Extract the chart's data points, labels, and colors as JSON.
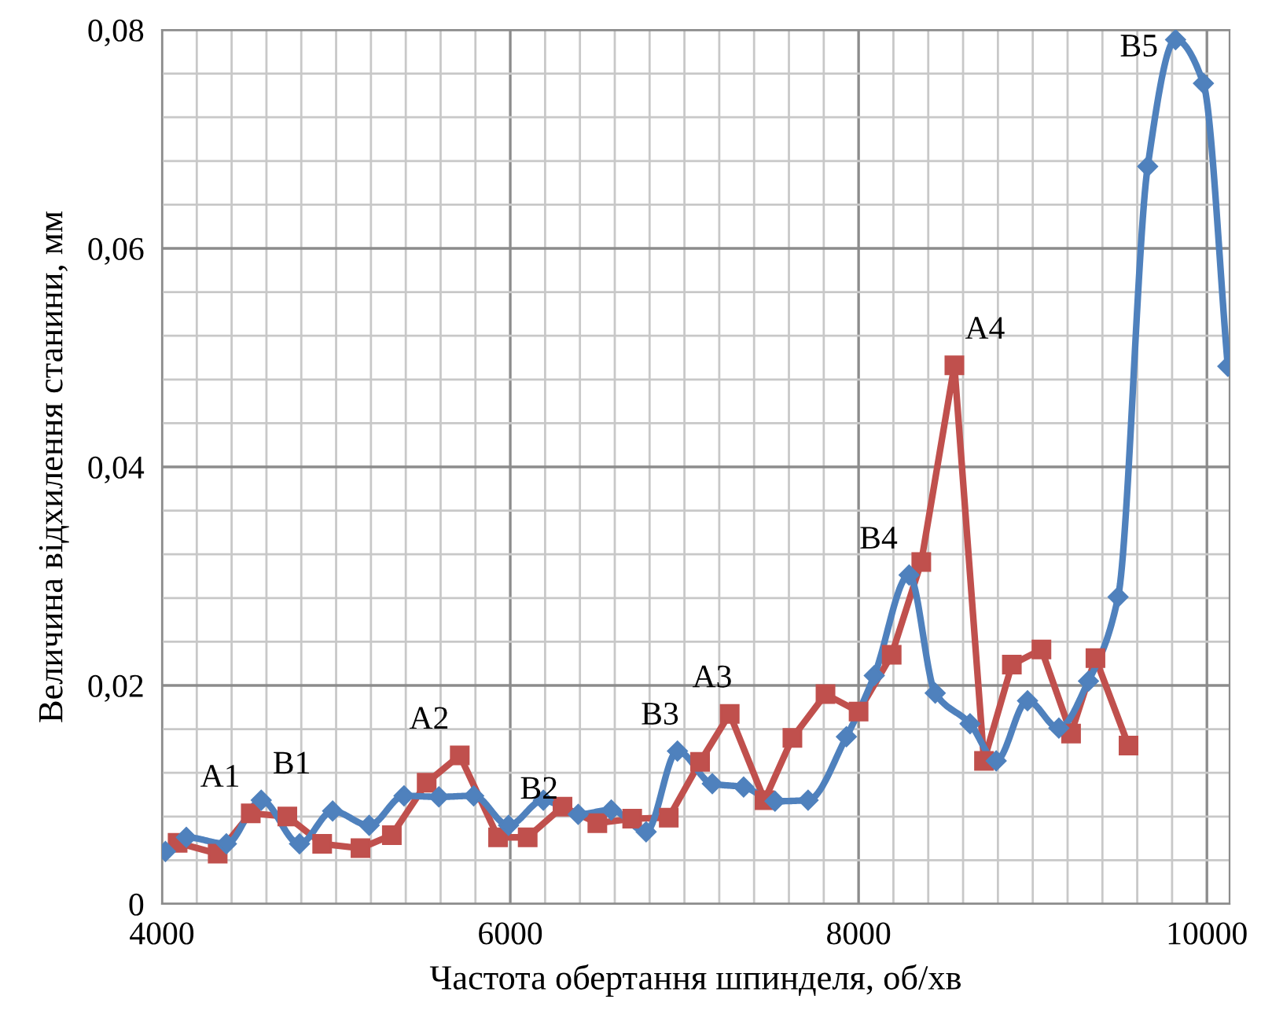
{
  "chart_data": {
    "type": "line",
    "xlabel": "Частота обертання шпинделя, об/хв",
    "ylabel": "Величина відхилення станини, мм",
    "xlim": [
      4000,
      10130
    ],
    "xticks": [
      4000,
      {
        "value": 4200,
        "label": null
      },
      {
        "value": 4400,
        "label": null
      },
      {
        "value": 4600,
        "label": null
      },
      {
        "value": 4800,
        "label": null
      },
      {
        "value": 5000,
        "label": null
      },
      {
        "value": 5200,
        "label": null
      },
      {
        "value": 5400,
        "label": null
      },
      {
        "value": 5600,
        "label": null
      },
      {
        "value": 5800,
        "label": null
      },
      6000,
      {
        "value": 6200,
        "label": null
      },
      {
        "value": 6400,
        "label": null
      },
      {
        "value": 6600,
        "label": null
      },
      {
        "value": 6800,
        "label": null
      },
      {
        "value": 7000,
        "label": null
      },
      {
        "value": 7200,
        "label": null
      },
      {
        "value": 7400,
        "label": null
      },
      {
        "value": 7600,
        "label": null
      },
      {
        "value": 7800,
        "label": null
      },
      8000,
      {
        "value": 8200,
        "label": null
      },
      {
        "value": 8400,
        "label": null
      },
      {
        "value": 8600,
        "label": null
      },
      {
        "value": 8800,
        "label": null
      },
      {
        "value": 9000,
        "label": null
      },
      {
        "value": 9200,
        "label": null
      },
      {
        "value": 9400,
        "label": null
      },
      {
        "value": 9600,
        "label": null
      },
      {
        "value": 9800,
        "label": null
      },
      10000
    ],
    "ylim": [
      0,
      0.08
    ],
    "yticks": [
      {
        "value": 0,
        "label": "0"
      },
      {
        "value": 0.004,
        "label": null
      },
      {
        "value": 0.008,
        "label": null
      },
      {
        "value": 0.012,
        "label": null
      },
      {
        "value": 0.016,
        "label": null
      },
      {
        "value": 0.02,
        "label": "0,02"
      },
      {
        "value": 0.024,
        "label": null
      },
      {
        "value": 0.028,
        "label": null
      },
      {
        "value": 0.032,
        "label": null
      },
      {
        "value": 0.036,
        "label": null
      },
      {
        "value": 0.04,
        "label": "0,04"
      },
      {
        "value": 0.044,
        "label": null
      },
      {
        "value": 0.048,
        "label": null
      },
      {
        "value": 0.052,
        "label": null
      },
      {
        "value": 0.056,
        "label": null
      },
      {
        "value": 0.06,
        "label": "0,06"
      },
      {
        "value": 0.064,
        "label": null
      },
      {
        "value": 0.068,
        "label": null
      },
      {
        "value": 0.072,
        "label": null
      },
      {
        "value": 0.076,
        "label": null
      },
      {
        "value": 0.08,
        "label": "0,08"
      }
    ],
    "grid": true,
    "legend": false,
    "series": [
      {
        "color": "#c0504d",
        "marker": "square",
        "line_style": "solid",
        "x": [
          4090,
          4320,
          4510,
          4720,
          4920,
          5140,
          5320,
          5520,
          5710,
          5930,
          6100,
          6300,
          6500,
          6700,
          6910,
          7090,
          7260,
          7460,
          7620,
          7810,
          8000,
          8190,
          8360,
          8550,
          8720,
          8880,
          9050,
          9220,
          9360,
          9550
        ],
        "values": [
          0.0056,
          0.0046,
          0.0083,
          0.008,
          0.0055,
          0.0051,
          0.0063,
          0.0111,
          0.0136,
          0.0061,
          0.0061,
          0.0089,
          0.0074,
          0.0078,
          0.0079,
          0.013,
          0.0174,
          0.0095,
          0.0152,
          0.0192,
          0.0176,
          0.0228,
          0.0313,
          0.0493,
          0.0131,
          0.0219,
          0.0233,
          0.0156,
          0.0225,
          0.0145
        ]
      },
      {
        "color": "#4f81bd",
        "marker": "diamond",
        "line_style": "solid",
        "x": [
          4020,
          4140,
          4370,
          4570,
          4790,
          4980,
          5190,
          5390,
          5590,
          5790,
          5990,
          6190,
          6390,
          6580,
          6780,
          6960,
          7160,
          7340,
          7520,
          7710,
          7930,
          8090,
          8290,
          8440,
          8640,
          8790,
          8970,
          9150,
          9320,
          9490,
          9660,
          9820,
          9980,
          10120
        ],
        "values": [
          0.0048,
          0.0061,
          0.0055,
          0.0095,
          0.0055,
          0.0085,
          0.0072,
          0.0099,
          0.0098,
          0.0099,
          0.0072,
          0.0095,
          0.0082,
          0.0086,
          0.0066,
          0.014,
          0.011,
          0.0107,
          0.0094,
          0.0095,
          0.0153,
          0.0209,
          0.0301,
          0.0193,
          0.0165,
          0.0131,
          0.0186,
          0.0161,
          0.0204,
          0.0281,
          0.0675,
          0.0791,
          0.0751,
          0.0492
        ]
      }
    ],
    "annotations": [
      {
        "text": "A1",
        "x": 4510,
        "y": 0.0083
      },
      {
        "text": "B1",
        "x": 4570,
        "y": 0.0095
      },
      {
        "text": "A2",
        "x": 5710,
        "y": 0.0136
      },
      {
        "text": "B2",
        "x": 5990,
        "y": 0.0072
      },
      {
        "text": "B3",
        "x": 6960,
        "y": 0.014
      },
      {
        "text": "A3",
        "x": 7260,
        "y": 0.0174
      },
      {
        "text": "B4",
        "x": 8290,
        "y": 0.0301
      },
      {
        "text": "A4",
        "x": 8550,
        "y": 0.0493
      },
      {
        "text": "B5",
        "x": 9820,
        "y": 0.0791
      }
    ]
  }
}
